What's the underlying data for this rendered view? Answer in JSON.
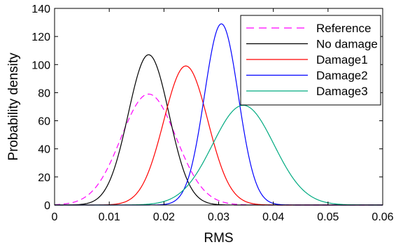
{
  "chart_data": {
    "type": "line",
    "xlabel": "RMS",
    "ylabel": "Probability density",
    "xlim": [
      0,
      0.06
    ],
    "ylim": [
      0,
      140
    ],
    "x_ticks": [
      0,
      0.01,
      0.02,
      0.03,
      0.04,
      0.05,
      0.06
    ],
    "x_tick_labels": [
      "0",
      "0.01",
      "0.02",
      "0.03",
      "0.04",
      "0.05",
      "0.06"
    ],
    "y_ticks": [
      0,
      20,
      40,
      60,
      80,
      100,
      120,
      140
    ],
    "y_tick_labels": [
      "0",
      "20",
      "40",
      "60",
      "80",
      "100",
      "120",
      "140"
    ],
    "grid": false,
    "legend_position": "top-right",
    "series": [
      {
        "name": "Reference",
        "color": "#ff00ff",
        "dash": true,
        "mean": 0.0172,
        "peak": 79
      },
      {
        "name": "No damage",
        "color": "#000000",
        "dash": false,
        "mean": 0.0172,
        "peak": 107
      },
      {
        "name": "Damage1",
        "color": "#ff0000",
        "dash": false,
        "mean": 0.024,
        "peak": 99
      },
      {
        "name": "Damage2",
        "color": "#0000ff",
        "dash": false,
        "mean": 0.0305,
        "peak": 129
      },
      {
        "name": "Damage3",
        "color": "#00aa80",
        "dash": false,
        "mean": 0.0345,
        "peak": 71
      }
    ]
  }
}
